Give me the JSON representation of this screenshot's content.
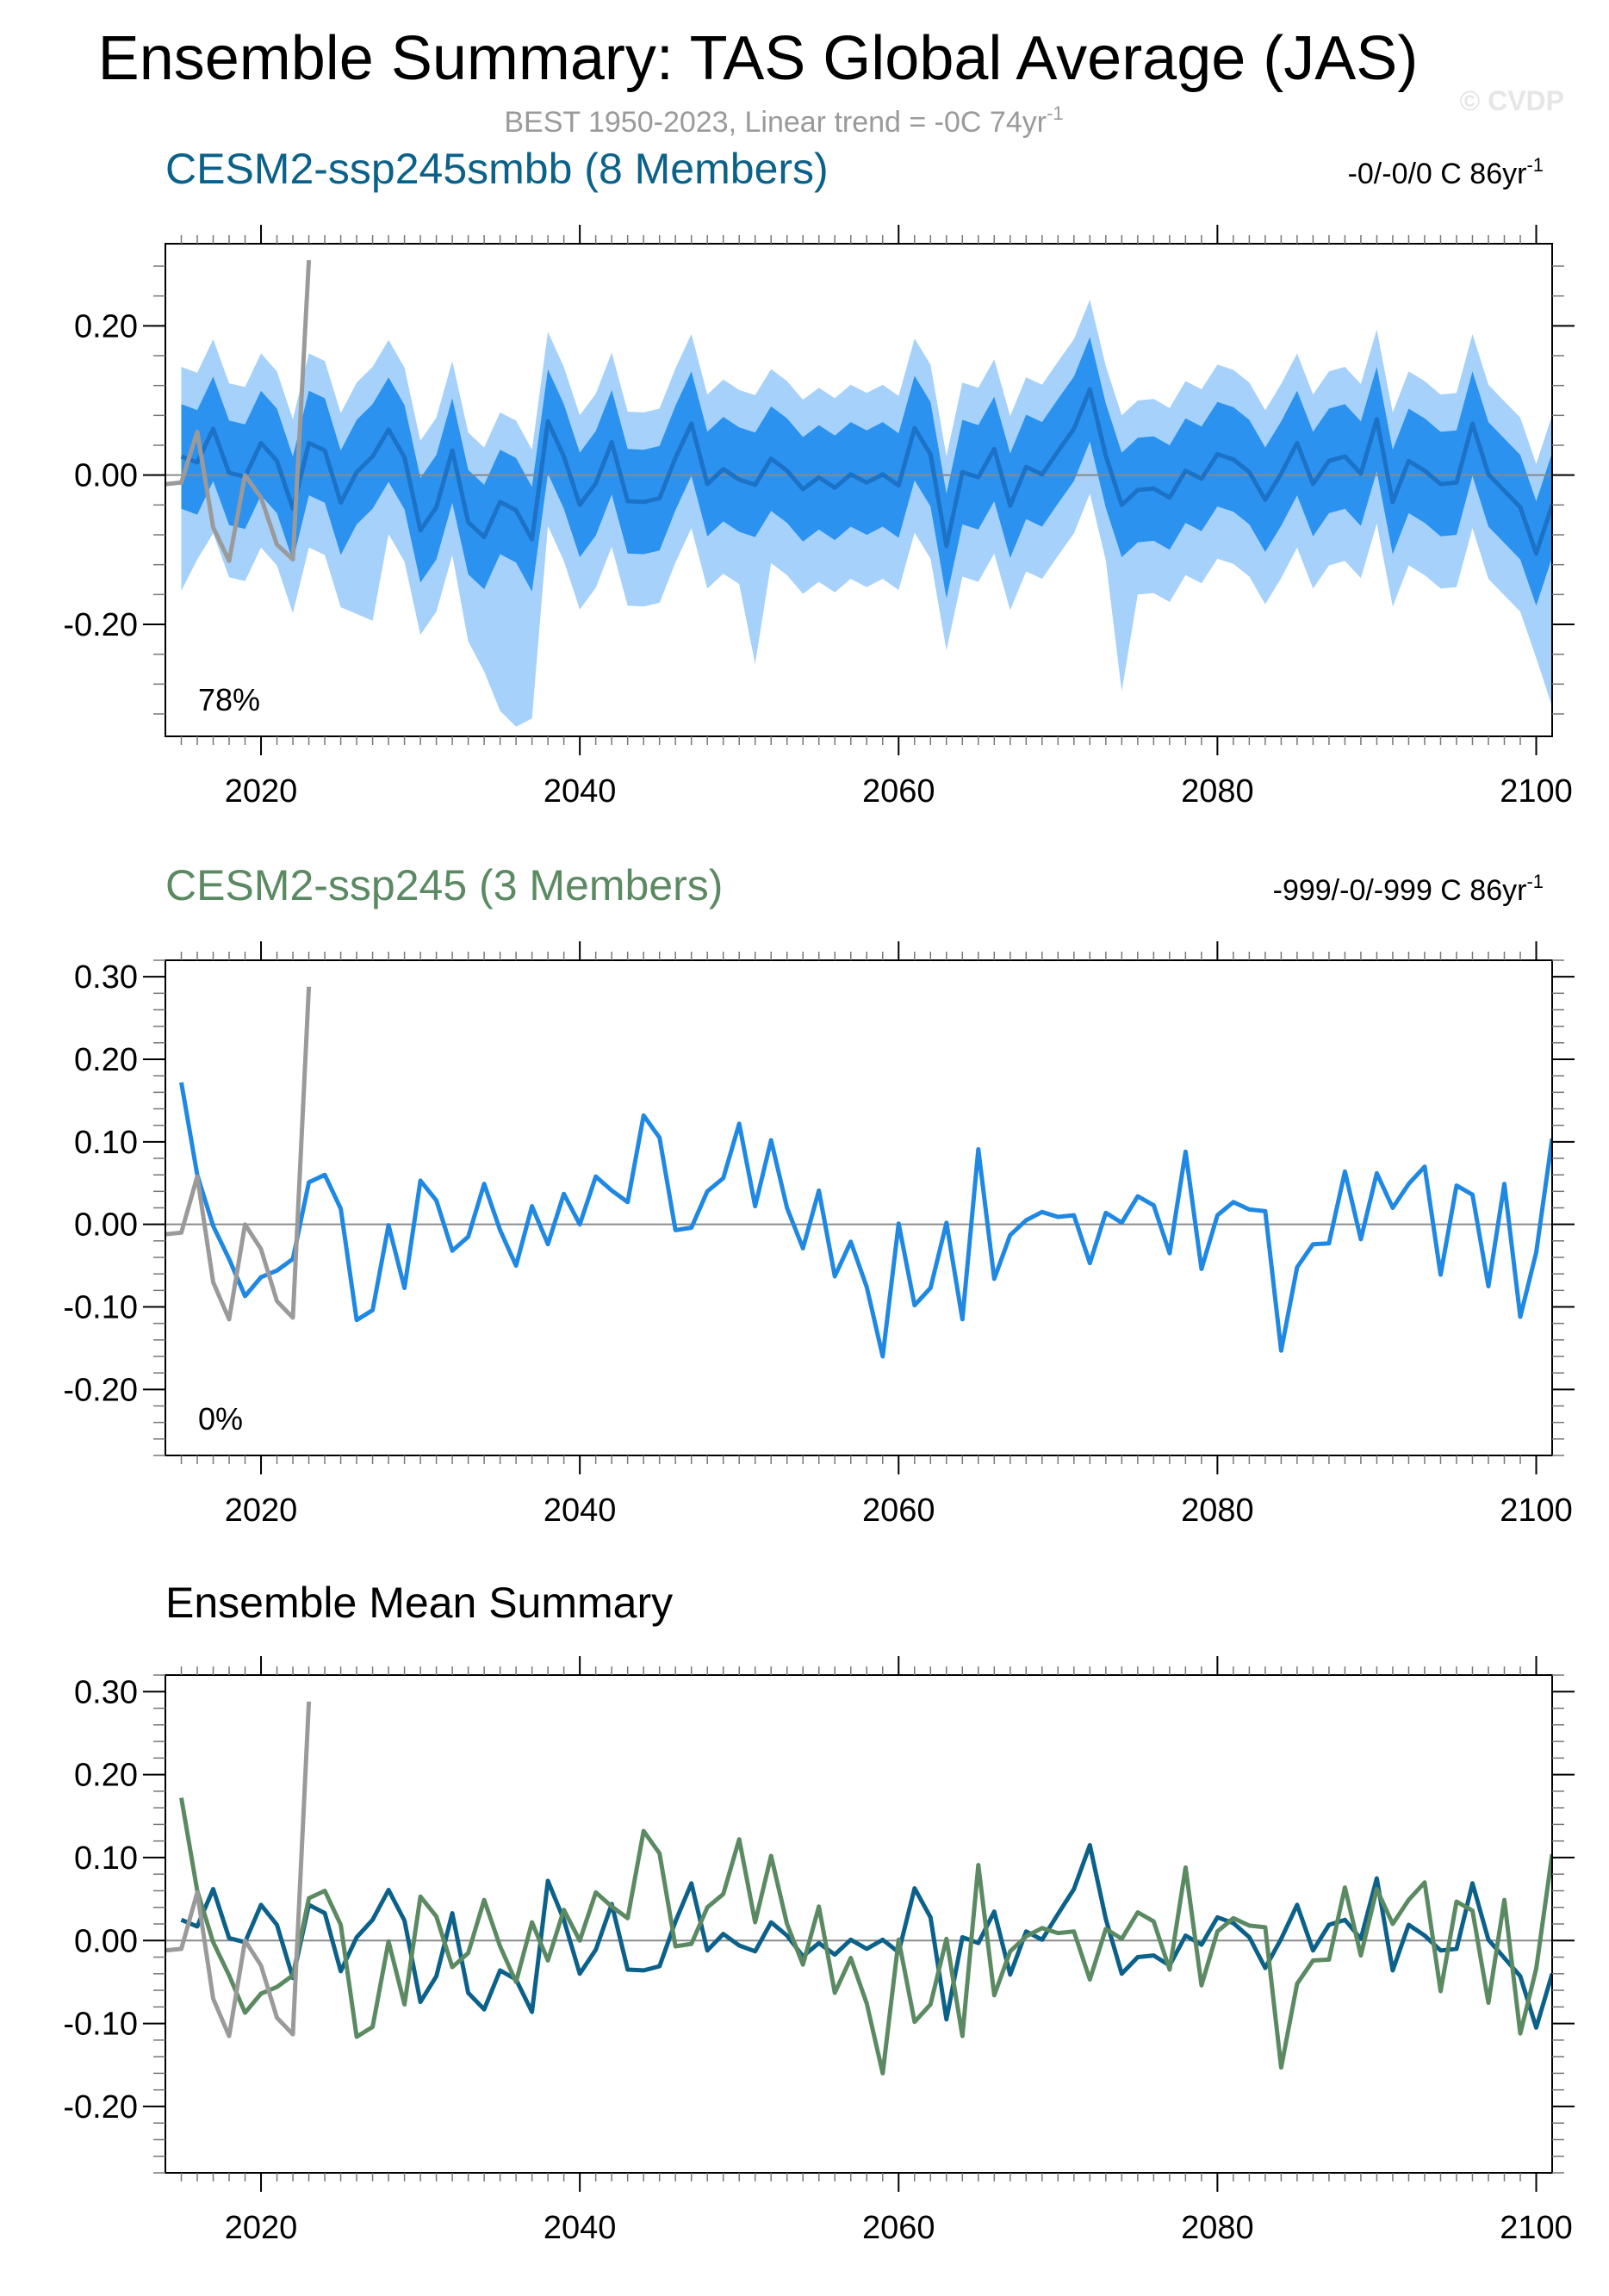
{
  "figure": {
    "title": "Ensemble Summary: TAS Global Average (JAS)",
    "subtitle_prefix": "BEST 1950-2023, Linear trend = -0C 74yr",
    "subtitle_exponent": "-1",
    "watermark": "© CVDP"
  },
  "colors": {
    "dark_blue": "#0b6189",
    "blue_line": "#1f88e3",
    "band_outer": "#a6d1fb",
    "band_inner": "#2b92f0",
    "band_mean": "#1c72c6",
    "green": "#5b8a62",
    "obs_gray": "#9a9a9a",
    "zero_line": "#8a8a8a"
  },
  "chart_data": [
    {
      "type": "area",
      "panel": "ensemble-spread",
      "title": "CESM2-ssp245smbb (8 Members)",
      "title_color": "#0b6189",
      "trend_text": "-0/-0/0 C 86yr",
      "trend_exponent": "-1",
      "percent_label": "78%",
      "x_start": 2015,
      "ylim": [
        -0.35,
        0.31
      ],
      "xlim": [
        2014,
        2101
      ],
      "yticks": [
        -0.2,
        0.0,
        0.2
      ],
      "ytick_labels": [
        "-0.20",
        "0.00",
        "0.20"
      ],
      "xticks": [
        2020,
        2040,
        2060,
        2080,
        2100
      ],
      "xtick_labels": [
        "2020",
        "2040",
        "2060",
        "2080",
        "2100"
      ],
      "series": [
        {
          "name": "mean",
          "values": [
            0.025,
            0.017,
            0.062,
            0.003,
            -0.002,
            0.043,
            0.019,
            -0.045,
            0.043,
            0.033,
            -0.037,
            0.004,
            0.025,
            0.061,
            0.024,
            -0.074,
            -0.043,
            0.033,
            -0.063,
            -0.083,
            -0.036,
            -0.047,
            -0.086,
            0.072,
            0.025,
            -0.04,
            -0.011,
            0.044,
            -0.035,
            -0.036,
            -0.031,
            0.023,
            0.069,
            -0.012,
            0.008,
            -0.006,
            -0.013,
            0.022,
            0.006,
            -0.019,
            -0.003,
            -0.017,
            0.001,
            -0.01,
            0.001,
            -0.014,
            0.063,
            0.028,
            -0.095,
            0.004,
            -0.003,
            0.035,
            -0.041,
            0.011,
            0.001,
            0.032,
            0.062,
            0.115,
            0.026,
            -0.04,
            -0.02,
            -0.018,
            -0.03,
            0.006,
            -0.005,
            0.028,
            0.021,
            0.004,
            -0.033,
            0.002,
            0.043,
            -0.012,
            0.019,
            0.025,
            0.002,
            0.075,
            -0.036,
            0.019,
            0.006,
            -0.012,
            -0.01,
            0.069,
            0.001,
            -0.021,
            -0.043,
            -0.105,
            -0.04
          ]
        },
        {
          "name": "inner_upper",
          "values": [
            0.095,
            0.087,
            0.132,
            0.073,
            0.068,
            0.113,
            0.089,
            0.025,
            0.113,
            0.103,
            0.033,
            0.074,
            0.095,
            0.131,
            0.094,
            -0.004,
            0.027,
            0.103,
            0.007,
            -0.013,
            0.034,
            0.023,
            -0.016,
            0.142,
            0.095,
            0.03,
            0.059,
            0.114,
            0.035,
            0.034,
            0.039,
            0.093,
            0.139,
            0.058,
            0.078,
            0.064,
            0.057,
            0.092,
            0.076,
            0.051,
            0.067,
            0.053,
            0.071,
            0.06,
            0.071,
            0.056,
            0.133,
            0.098,
            -0.025,
            0.074,
            0.067,
            0.105,
            0.029,
            0.081,
            0.071,
            0.102,
            0.132,
            0.185,
            0.096,
            0.03,
            0.05,
            0.052,
            0.04,
            0.076,
            0.065,
            0.098,
            0.091,
            0.074,
            0.037,
            0.072,
            0.113,
            0.058,
            0.089,
            0.095,
            0.072,
            0.145,
            0.034,
            0.089,
            0.076,
            0.058,
            0.06,
            0.139,
            0.071,
            0.049,
            0.027,
            -0.035,
            0.03
          ]
        },
        {
          "name": "inner_lower",
          "values": [
            -0.045,
            -0.053,
            -0.008,
            -0.067,
            -0.072,
            -0.027,
            -0.051,
            -0.115,
            -0.027,
            -0.037,
            -0.107,
            -0.066,
            -0.045,
            -0.009,
            -0.046,
            -0.144,
            -0.113,
            -0.037,
            -0.133,
            -0.153,
            -0.106,
            -0.117,
            -0.156,
            0.002,
            -0.045,
            -0.11,
            -0.081,
            -0.026,
            -0.105,
            -0.106,
            -0.101,
            -0.047,
            -0.001,
            -0.082,
            -0.062,
            -0.076,
            -0.083,
            -0.048,
            -0.064,
            -0.089,
            -0.073,
            -0.087,
            -0.069,
            -0.08,
            -0.069,
            -0.084,
            -0.007,
            -0.042,
            -0.165,
            -0.066,
            -0.073,
            -0.035,
            -0.111,
            -0.059,
            -0.069,
            -0.038,
            -0.008,
            0.045,
            -0.044,
            -0.11,
            -0.09,
            -0.088,
            -0.1,
            -0.064,
            -0.075,
            -0.042,
            -0.049,
            -0.066,
            -0.103,
            -0.068,
            -0.027,
            -0.082,
            -0.051,
            -0.045,
            -0.068,
            0.005,
            -0.106,
            -0.051,
            -0.064,
            -0.082,
            -0.08,
            -0.001,
            -0.069,
            -0.091,
            -0.113,
            -0.175,
            -0.11
          ]
        },
        {
          "name": "outer_upper",
          "values": [
            0.145,
            0.137,
            0.182,
            0.123,
            0.118,
            0.163,
            0.139,
            0.075,
            0.163,
            0.153,
            0.083,
            0.124,
            0.145,
            0.181,
            0.144,
            0.046,
            0.077,
            0.153,
            0.057,
            0.037,
            0.084,
            0.073,
            0.034,
            0.192,
            0.145,
            0.08,
            0.109,
            0.164,
            0.085,
            0.084,
            0.089,
            0.143,
            0.189,
            0.108,
            0.128,
            0.114,
            0.107,
            0.142,
            0.126,
            0.101,
            0.117,
            0.103,
            0.121,
            0.11,
            0.121,
            0.106,
            0.183,
            0.148,
            0.025,
            0.124,
            0.117,
            0.155,
            0.079,
            0.131,
            0.121,
            0.152,
            0.182,
            0.235,
            0.146,
            0.08,
            0.1,
            0.102,
            0.09,
            0.126,
            0.115,
            0.148,
            0.141,
            0.124,
            0.087,
            0.122,
            0.163,
            0.108,
            0.139,
            0.145,
            0.122,
            0.195,
            0.084,
            0.139,
            0.126,
            0.108,
            0.11,
            0.189,
            0.121,
            0.099,
            0.077,
            0.015,
            0.08
          ]
        },
        {
          "name": "outer_lower",
          "values": [
            -0.155,
            -0.113,
            -0.078,
            -0.137,
            -0.142,
            -0.097,
            -0.121,
            -0.185,
            -0.097,
            -0.107,
            -0.177,
            -0.186,
            -0.195,
            -0.079,
            -0.116,
            -0.214,
            -0.183,
            -0.107,
            -0.223,
            -0.263,
            -0.316,
            -0.337,
            -0.326,
            -0.068,
            -0.115,
            -0.18,
            -0.151,
            -0.096,
            -0.175,
            -0.176,
            -0.171,
            -0.117,
            -0.071,
            -0.152,
            -0.132,
            -0.146,
            -0.253,
            -0.118,
            -0.134,
            -0.159,
            -0.143,
            -0.157,
            -0.139,
            -0.15,
            -0.139,
            -0.154,
            -0.077,
            -0.112,
            -0.235,
            -0.136,
            -0.143,
            -0.105,
            -0.181,
            -0.129,
            -0.139,
            -0.108,
            -0.078,
            -0.025,
            -0.114,
            -0.29,
            -0.16,
            -0.158,
            -0.17,
            -0.134,
            -0.145,
            -0.112,
            -0.119,
            -0.136,
            -0.173,
            -0.138,
            -0.097,
            -0.152,
            -0.121,
            -0.115,
            -0.138,
            -0.065,
            -0.176,
            -0.121,
            -0.134,
            -0.152,
            -0.15,
            -0.071,
            -0.139,
            -0.161,
            -0.183,
            -0.245,
            -0.31
          ]
        }
      ],
      "obs": {
        "name": "BEST",
        "x_start": 2014,
        "values": [
          -0.012,
          -0.01,
          0.058,
          -0.07,
          -0.115,
          0.0,
          -0.03,
          -0.093,
          -0.113,
          0.288
        ]
      }
    },
    {
      "type": "line",
      "panel": "ensemble-member",
      "title": "CESM2-ssp245 (3 Members)",
      "title_color": "#5b8a62",
      "trend_text": "-999/-0/-999 C 86yr",
      "trend_exponent": "-1",
      "percent_label": "0%",
      "x_start": 2015,
      "ylim": [
        -0.28,
        0.32
      ],
      "xlim": [
        2014,
        2101
      ],
      "yticks": [
        -0.2,
        -0.1,
        0.0,
        0.1,
        0.2,
        0.3
      ],
      "ytick_labels": [
        "-0.20",
        "-0.10",
        "0.00",
        "0.10",
        "0.20",
        "0.30"
      ],
      "xticks": [
        2020,
        2040,
        2060,
        2080,
        2100
      ],
      "xtick_labels": [
        "2020",
        "2040",
        "2060",
        "2080",
        "2100"
      ],
      "series": [
        {
          "name": "CESM2-ssp245",
          "values": [
            0.172,
            0.06,
            -0.002,
            -0.042,
            -0.087,
            -0.064,
            -0.056,
            -0.042,
            0.051,
            0.06,
            0.019,
            -0.116,
            -0.104,
            -0.001,
            -0.077,
            0.053,
            0.029,
            -0.032,
            -0.015,
            0.049,
            -0.007,
            -0.05,
            0.022,
            -0.024,
            0.037,
            0.0,
            0.058,
            0.041,
            0.027,
            0.132,
            0.105,
            -0.007,
            -0.004,
            0.04,
            0.056,
            0.122,
            0.022,
            0.102,
            0.02,
            -0.029,
            0.041,
            -0.063,
            -0.021,
            -0.076,
            -0.16,
            0.001,
            -0.098,
            -0.077,
            0.002,
            -0.115,
            0.091,
            -0.066,
            -0.013,
            0.005,
            0.015,
            0.009,
            0.011,
            -0.047,
            0.014,
            0.002,
            0.034,
            0.023,
            -0.035,
            0.088,
            -0.054,
            0.011,
            0.027,
            0.018,
            0.016,
            -0.153,
            -0.052,
            -0.024,
            -0.023,
            0.064,
            -0.018,
            0.062,
            0.02,
            0.049,
            0.07,
            -0.061,
            0.047,
            0.036,
            -0.075,
            0.049,
            -0.112,
            -0.034,
            0.104
          ]
        }
      ],
      "obs": {
        "name": "BEST",
        "x_start": 2014,
        "values": [
          -0.012,
          -0.01,
          0.058,
          -0.07,
          -0.115,
          0.0,
          -0.03,
          -0.093,
          -0.113,
          0.288
        ]
      }
    },
    {
      "type": "line",
      "panel": "ensemble-mean-summary",
      "title": "Ensemble Mean Summary",
      "x_start": 2015,
      "ylim": [
        -0.28,
        0.32
      ],
      "xlim": [
        2014,
        2101
      ],
      "yticks": [
        -0.2,
        -0.1,
        0.0,
        0.1,
        0.2,
        0.3
      ],
      "ytick_labels": [
        "-0.20",
        "-0.10",
        "0.00",
        "0.10",
        "0.20",
        "0.30"
      ],
      "xticks": [
        2020,
        2040,
        2060,
        2080,
        2100
      ],
      "xtick_labels": [
        "2020",
        "2040",
        "2060",
        "2080",
        "2100"
      ],
      "series": [
        {
          "name": "CESM2-ssp245smbb",
          "color_key": "dark_blue",
          "values": [
            0.025,
            0.017,
            0.062,
            0.003,
            -0.002,
            0.043,
            0.019,
            -0.045,
            0.043,
            0.033,
            -0.037,
            0.004,
            0.025,
            0.061,
            0.024,
            -0.074,
            -0.043,
            0.033,
            -0.063,
            -0.083,
            -0.036,
            -0.047,
            -0.086,
            0.072,
            0.025,
            -0.04,
            -0.011,
            0.044,
            -0.035,
            -0.036,
            -0.031,
            0.023,
            0.069,
            -0.012,
            0.008,
            -0.006,
            -0.013,
            0.022,
            0.006,
            -0.019,
            -0.003,
            -0.017,
            0.001,
            -0.01,
            0.001,
            -0.014,
            0.063,
            0.028,
            -0.095,
            0.004,
            -0.003,
            0.035,
            -0.041,
            0.011,
            0.001,
            0.032,
            0.062,
            0.115,
            0.026,
            -0.04,
            -0.02,
            -0.018,
            -0.03,
            0.006,
            -0.005,
            0.028,
            0.021,
            0.004,
            -0.033,
            0.002,
            0.043,
            -0.012,
            0.019,
            0.025,
            0.002,
            0.075,
            -0.036,
            0.019,
            0.006,
            -0.012,
            -0.01,
            0.069,
            0.001,
            -0.021,
            -0.043,
            -0.105,
            -0.04
          ]
        },
        {
          "name": "CESM2-ssp245",
          "color_key": "green",
          "values": [
            0.172,
            0.06,
            -0.002,
            -0.042,
            -0.087,
            -0.064,
            -0.056,
            -0.042,
            0.051,
            0.06,
            0.019,
            -0.116,
            -0.104,
            -0.001,
            -0.077,
            0.053,
            0.029,
            -0.032,
            -0.015,
            0.049,
            -0.007,
            -0.05,
            0.022,
            -0.024,
            0.037,
            0.0,
            0.058,
            0.041,
            0.027,
            0.132,
            0.105,
            -0.007,
            -0.004,
            0.04,
            0.056,
            0.122,
            0.022,
            0.102,
            0.02,
            -0.029,
            0.041,
            -0.063,
            -0.021,
            -0.076,
            -0.16,
            0.001,
            -0.098,
            -0.077,
            0.002,
            -0.115,
            0.091,
            -0.066,
            -0.013,
            0.005,
            0.015,
            0.009,
            0.011,
            -0.047,
            0.014,
            0.002,
            0.034,
            0.023,
            -0.035,
            0.088,
            -0.054,
            0.011,
            0.027,
            0.018,
            0.016,
            -0.153,
            -0.052,
            -0.024,
            -0.023,
            0.064,
            -0.018,
            0.062,
            0.02,
            0.049,
            0.07,
            -0.061,
            0.047,
            0.036,
            -0.075,
            0.049,
            -0.112,
            -0.034,
            0.104
          ]
        }
      ],
      "obs": {
        "name": "BEST",
        "x_start": 2014,
        "values": [
          -0.012,
          -0.01,
          0.058,
          -0.07,
          -0.115,
          0.0,
          -0.03,
          -0.093,
          -0.113,
          0.288
        ]
      }
    }
  ]
}
